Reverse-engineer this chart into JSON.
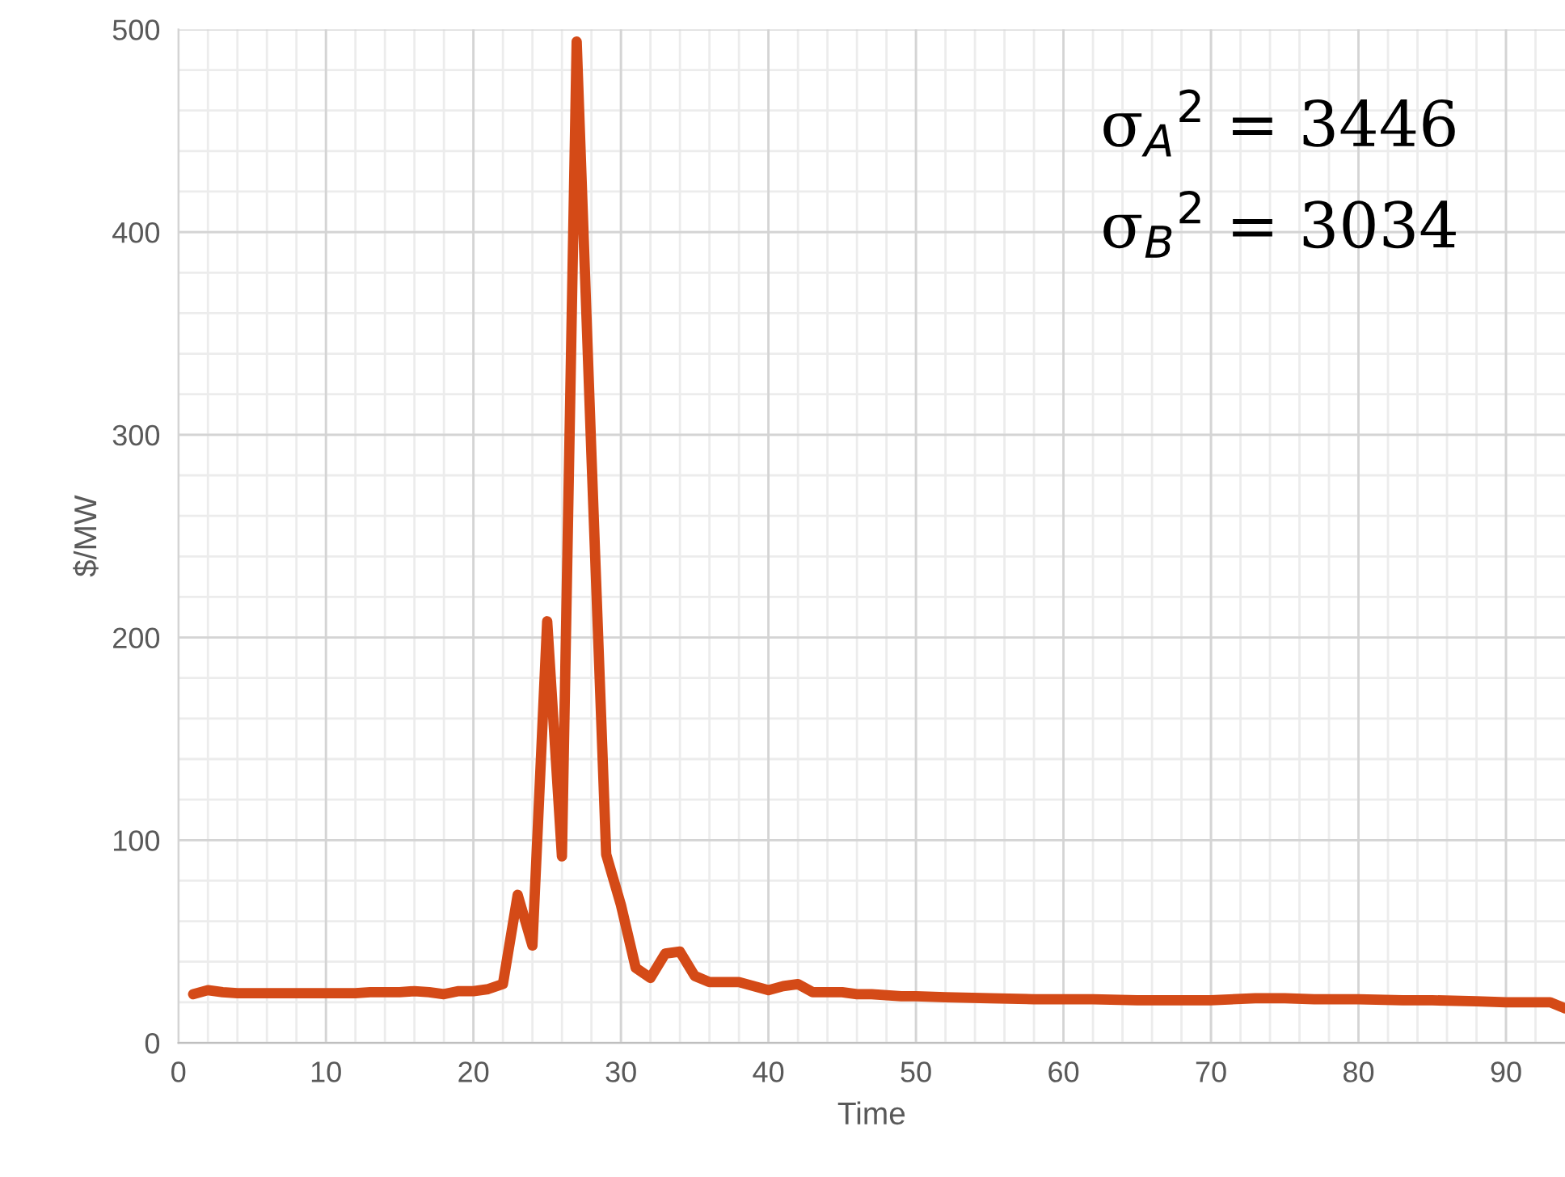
{
  "chart_data": {
    "type": "line",
    "xlabel": "Time",
    "ylabel": "$/MW",
    "x": [
      1,
      2,
      3,
      4,
      5,
      6,
      7,
      8,
      9,
      10,
      11,
      12,
      13,
      14,
      15,
      16,
      17,
      18,
      19,
      20,
      21,
      22,
      23,
      24,
      25,
      26,
      27,
      28,
      29,
      30,
      31,
      32,
      33,
      34,
      35,
      36,
      37,
      38,
      39,
      40,
      41,
      42,
      43,
      44,
      45,
      46,
      47,
      48,
      49,
      50,
      52,
      55,
      58,
      60,
      62,
      65,
      68,
      70,
      73,
      75,
      77,
      80,
      83,
      85,
      88,
      90,
      93,
      94
    ],
    "series": [
      {
        "color": "#d44a17",
        "values": [
          24,
          26,
          25,
          24.5,
          24.5,
          24.5,
          24.5,
          24.5,
          24.5,
          24.5,
          24.5,
          24.5,
          25,
          25,
          25,
          25.5,
          25,
          24,
          25.5,
          25.5,
          26.5,
          29,
          73,
          48,
          208,
          92,
          494,
          290,
          93,
          68,
          37,
          32,
          44,
          45,
          33,
          30,
          30,
          30,
          28,
          26,
          28,
          29,
          25,
          25,
          25,
          24,
          24,
          23.5,
          23,
          23,
          22.5,
          22,
          21.5,
          21.5,
          21.5,
          21,
          21,
          21,
          22,
          22,
          21.5,
          21.5,
          21,
          21,
          20.5,
          20,
          20,
          17
        ]
      }
    ],
    "xlim": [
      0,
      94
    ],
    "ylim": [
      0,
      500
    ],
    "xticks": [
      0,
      10,
      20,
      30,
      40,
      50,
      60,
      70,
      80,
      90
    ],
    "yticks": [
      0,
      100,
      200,
      300,
      400,
      500
    ],
    "grid": true,
    "legend": false,
    "marker": "none",
    "line_style": "solid",
    "annotations": [
      "σ$_{A}$$^{2}$ = 3446",
      "σ$_{B}$$^{2}$ = 3034"
    ]
  }
}
